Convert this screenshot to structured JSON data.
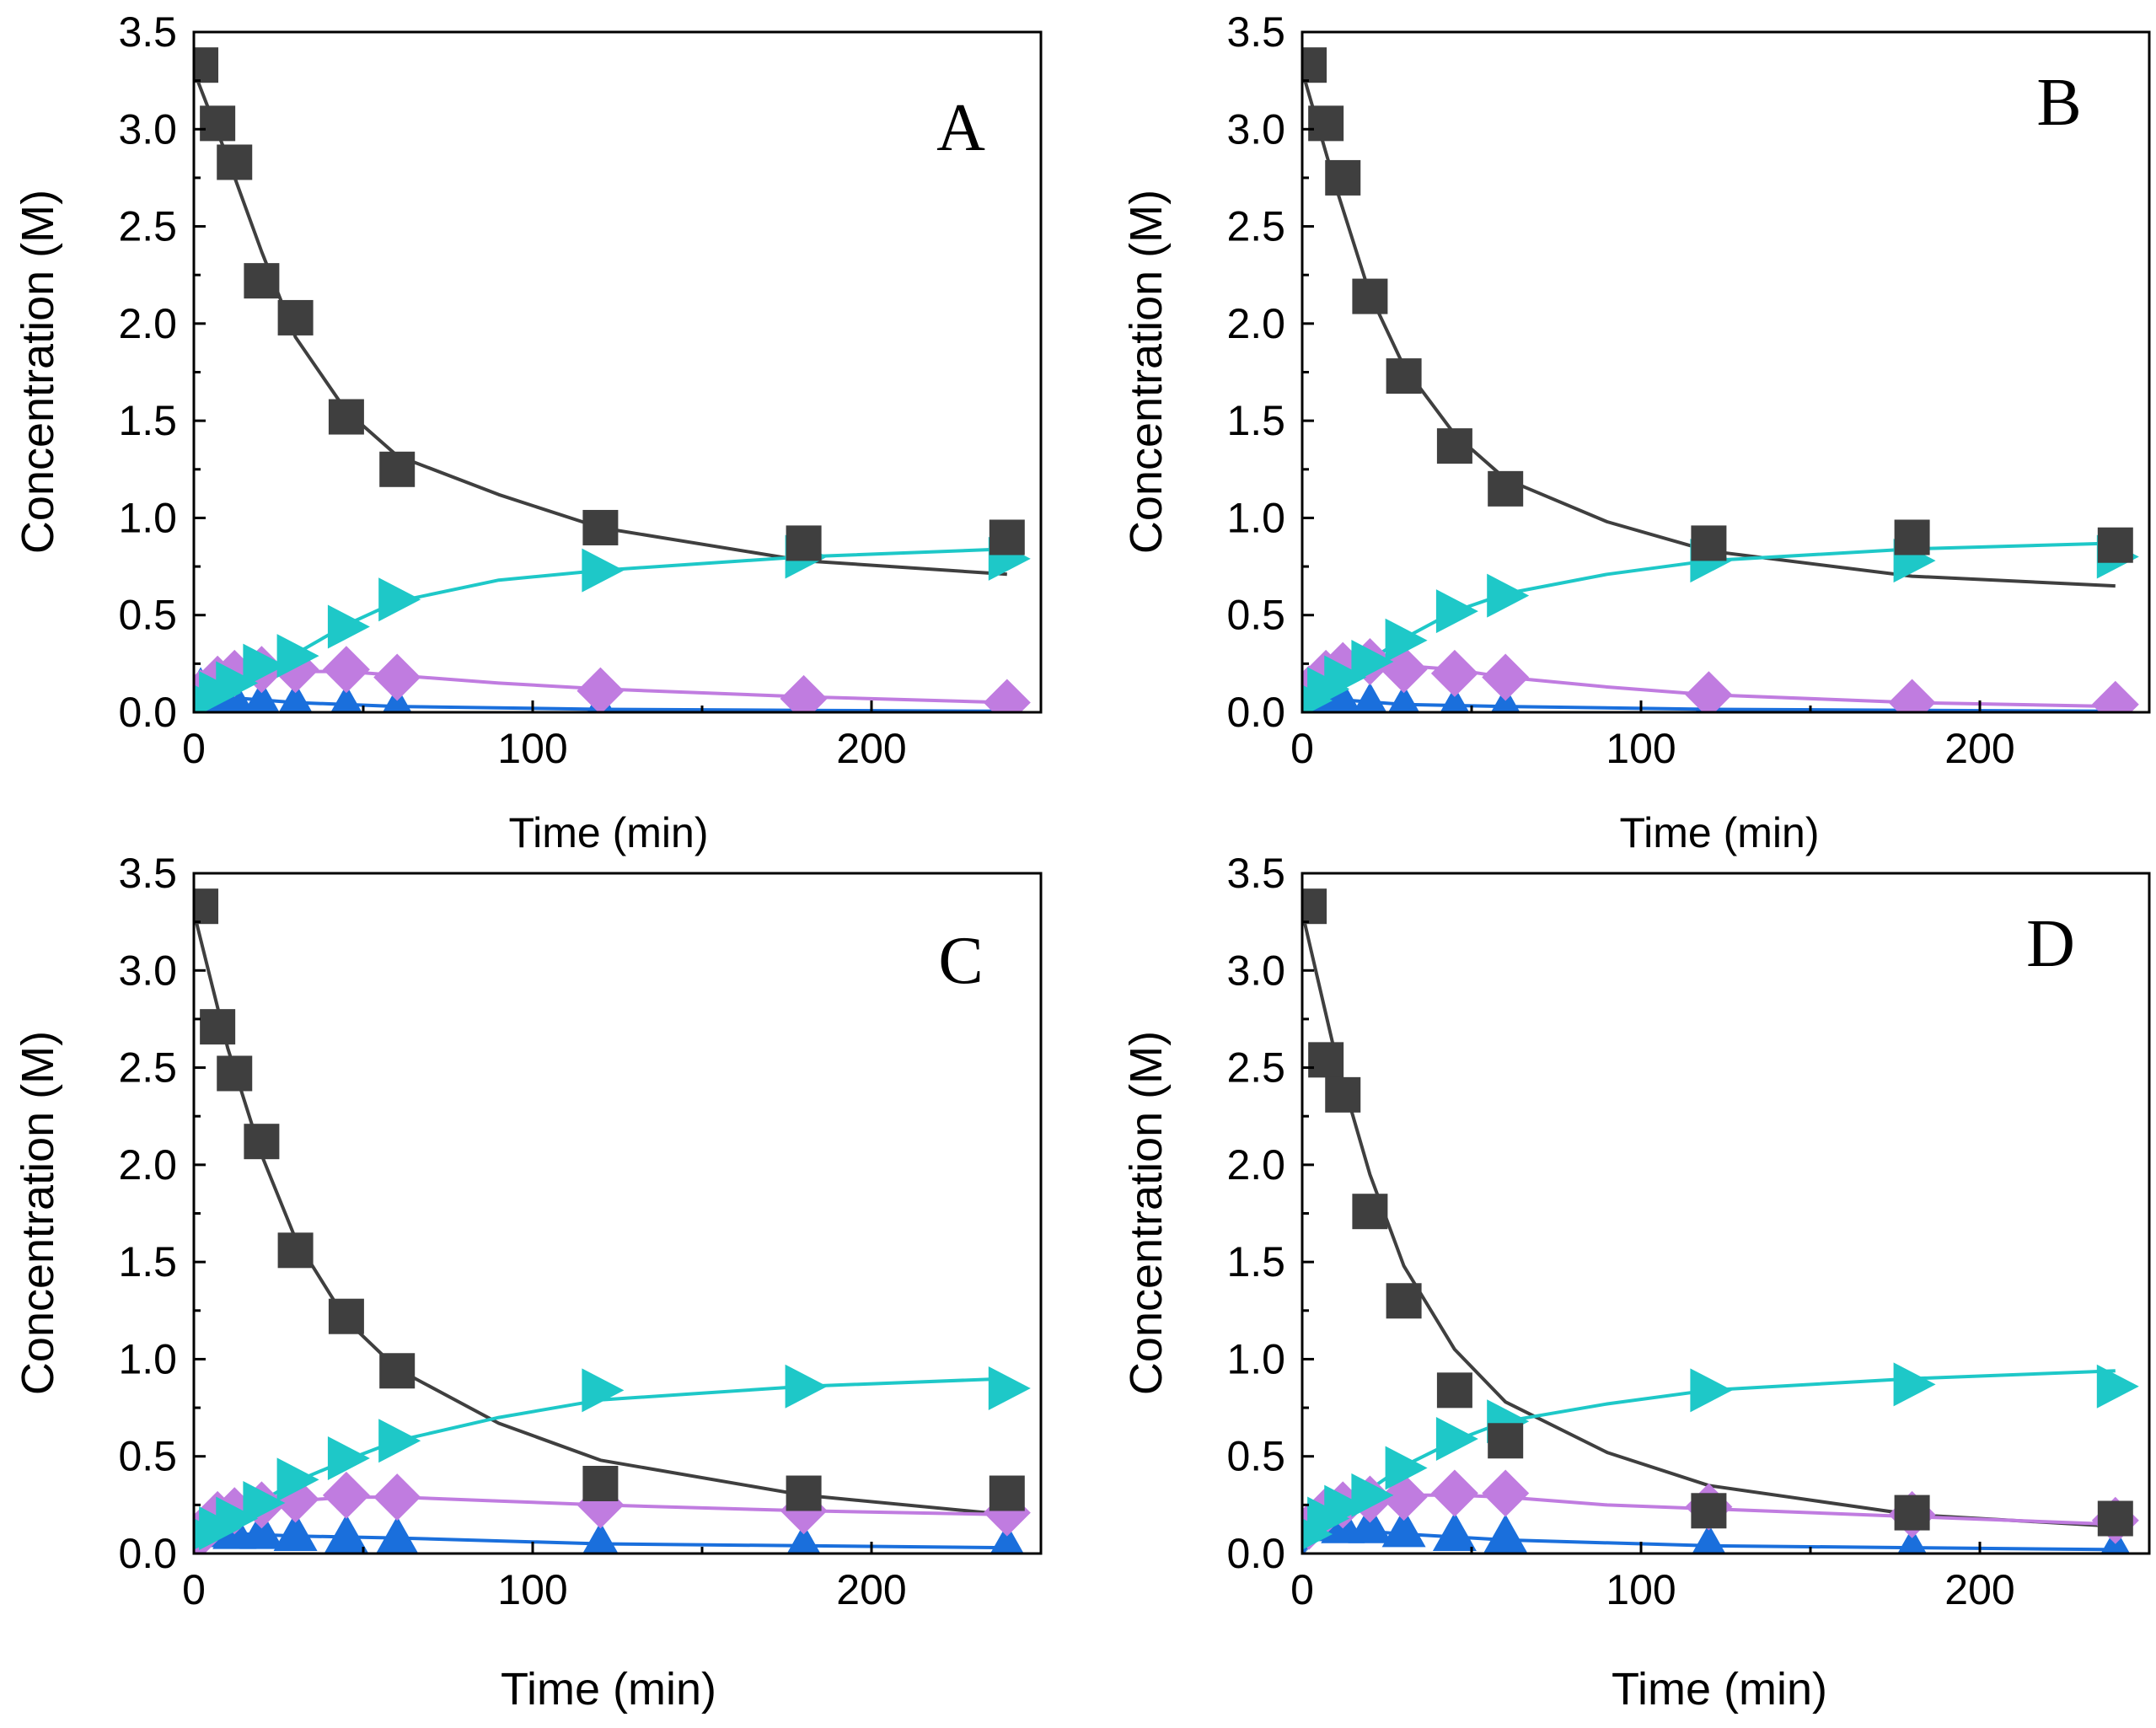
{
  "chart_data": [
    {
      "type": "scatter",
      "panel_label": "A",
      "xlabel": "Time (min)",
      "ylabel": "Concentration (M)",
      "xlim": [
        0,
        250
      ],
      "ylim": [
        0,
        3.5
      ],
      "xticks": [
        "0",
        "100",
        "200"
      ],
      "yticks": [
        "0.0",
        "0.5",
        "1.0",
        "1.5",
        "2.0",
        "2.5",
        "3.0",
        "3.5"
      ],
      "x": [
        2,
        7,
        12,
        20,
        30,
        45,
        60,
        120,
        180,
        240
      ],
      "series": [
        {
          "name": "series-1",
          "marker": "square",
          "color": "#3f3f3f",
          "values": [
            3.33,
            3.03,
            2.83,
            2.22,
            2.03,
            1.52,
            1.25,
            0.95,
            0.87,
            0.9
          ],
          "fit": [
            [
              0,
              3.3
            ],
            [
              10,
              2.85
            ],
            [
              20,
              2.37
            ],
            [
              30,
              1.93
            ],
            [
              45,
              1.55
            ],
            [
              60,
              1.32
            ],
            [
              90,
              1.12
            ],
            [
              120,
              0.95
            ],
            [
              180,
              0.78
            ],
            [
              240,
              0.71
            ]
          ]
        },
        {
          "name": "series-2",
          "marker": "triangle-right",
          "color": "#1ec8c8",
          "values": [
            0.06,
            0.1,
            0.15,
            0.24,
            0.29,
            0.44,
            0.58,
            0.73,
            0.8,
            0.79
          ],
          "fit": [
            [
              0,
              0.0
            ],
            [
              10,
              0.1
            ],
            [
              20,
              0.2
            ],
            [
              30,
              0.3
            ],
            [
              45,
              0.45
            ],
            [
              60,
              0.57
            ],
            [
              90,
              0.68
            ],
            [
              120,
              0.73
            ],
            [
              180,
              0.8
            ],
            [
              240,
              0.84
            ]
          ]
        },
        {
          "name": "series-3",
          "marker": "diamond",
          "color": "#c07ce0",
          "values": [
            0.1,
            0.17,
            0.2,
            0.22,
            0.22,
            0.22,
            0.18,
            0.11,
            0.07,
            0.05
          ],
          "fit": [
            [
              0,
              0.0
            ],
            [
              10,
              0.13
            ],
            [
              20,
              0.19
            ],
            [
              30,
              0.21
            ],
            [
              45,
              0.21
            ],
            [
              60,
              0.19
            ],
            [
              90,
              0.15
            ],
            [
              120,
              0.12
            ],
            [
              180,
              0.08
            ],
            [
              240,
              0.05
            ]
          ]
        },
        {
          "name": "series-4",
          "marker": "triangle-up",
          "color": "#1a6fdc",
          "values": [
            0.12,
            0.08,
            0.06,
            0.05,
            0.04,
            0.03,
            0.02,
            0.01,
            0.01,
            0.01
          ],
          "fit": [
            [
              0,
              0.0
            ],
            [
              5,
              0.08
            ],
            [
              15,
              0.07
            ],
            [
              30,
              0.05
            ],
            [
              60,
              0.03
            ],
            [
              120,
              0.015
            ],
            [
              180,
              0.01
            ],
            [
              240,
              0.005
            ]
          ]
        }
      ]
    },
    {
      "type": "scatter",
      "panel_label": "B",
      "xlabel": "Time (min)",
      "ylabel": "Concentration (M)",
      "xlim": [
        0,
        250
      ],
      "ylim": [
        0,
        3.5
      ],
      "xticks": [
        "0",
        "100",
        "200"
      ],
      "yticks": [
        "0.0",
        "0.5",
        "1.0",
        "1.5",
        "2.0",
        "2.5",
        "3.0",
        "3.5"
      ],
      "x": [
        2,
        7,
        12,
        20,
        30,
        45,
        60,
        120,
        180,
        240
      ],
      "series": [
        {
          "name": "series-1",
          "marker": "square",
          "color": "#3f3f3f",
          "values": [
            3.33,
            3.03,
            2.75,
            2.14,
            1.73,
            1.37,
            1.15,
            0.87,
            0.9,
            0.86
          ],
          "fit": [
            [
              0,
              3.3
            ],
            [
              10,
              2.7
            ],
            [
              20,
              2.15
            ],
            [
              30,
              1.78
            ],
            [
              45,
              1.43
            ],
            [
              60,
              1.2
            ],
            [
              90,
              0.98
            ],
            [
              120,
              0.83
            ],
            [
              180,
              0.7
            ],
            [
              240,
              0.65
            ]
          ]
        },
        {
          "name": "series-2",
          "marker": "triangle-right",
          "color": "#1ec8c8",
          "values": [
            0.06,
            0.12,
            0.18,
            0.26,
            0.37,
            0.52,
            0.6,
            0.78,
            0.78,
            0.8
          ],
          "fit": [
            [
              0,
              0.0
            ],
            [
              10,
              0.14
            ],
            [
              20,
              0.27
            ],
            [
              30,
              0.38
            ],
            [
              45,
              0.52
            ],
            [
              60,
              0.61
            ],
            [
              90,
              0.71
            ],
            [
              120,
              0.78
            ],
            [
              180,
              0.84
            ],
            [
              240,
              0.87
            ]
          ]
        },
        {
          "name": "series-3",
          "marker": "diamond",
          "color": "#c07ce0",
          "values": [
            0.12,
            0.2,
            0.24,
            0.26,
            0.22,
            0.2,
            0.18,
            0.09,
            0.05,
            0.04
          ],
          "fit": [
            [
              0,
              0.0
            ],
            [
              10,
              0.2
            ],
            [
              20,
              0.25
            ],
            [
              30,
              0.24
            ],
            [
              45,
              0.22
            ],
            [
              60,
              0.18
            ],
            [
              90,
              0.13
            ],
            [
              120,
              0.09
            ],
            [
              180,
              0.05
            ],
            [
              240,
              0.03
            ]
          ]
        },
        {
          "name": "series-4",
          "marker": "triangle-up",
          "color": "#1a6fdc",
          "values": [
            0.1,
            0.07,
            0.05,
            0.04,
            0.03,
            0.02,
            0.02,
            0.01,
            0.01,
            0.01
          ],
          "fit": [
            [
              0,
              0.0
            ],
            [
              5,
              0.07
            ],
            [
              15,
              0.06
            ],
            [
              30,
              0.04
            ],
            [
              60,
              0.03
            ],
            [
              120,
              0.015
            ],
            [
              180,
              0.01
            ],
            [
              240,
              0.005
            ]
          ]
        }
      ]
    },
    {
      "type": "scatter",
      "panel_label": "C",
      "xlabel": "Time (min)",
      "ylabel": "Concentration (M)",
      "xlim": [
        0,
        250
      ],
      "ylim": [
        0,
        3.5
      ],
      "xticks": [
        "0",
        "100",
        "200"
      ],
      "yticks": [
        "0.0",
        "0.5",
        "1.0",
        "1.5",
        "2.0",
        "2.5",
        "3.0",
        "3.5"
      ],
      "x": [
        2,
        7,
        12,
        20,
        30,
        45,
        60,
        120,
        180,
        240
      ],
      "series": [
        {
          "name": "series-1",
          "marker": "square",
          "color": "#3f3f3f",
          "values": [
            3.33,
            2.71,
            2.47,
            2.12,
            1.56,
            1.22,
            0.94,
            0.36,
            0.31,
            0.31
          ],
          "fit": [
            [
              0,
              3.3
            ],
            [
              10,
              2.6
            ],
            [
              20,
              2.05
            ],
            [
              30,
              1.62
            ],
            [
              45,
              1.2
            ],
            [
              60,
              0.95
            ],
            [
              90,
              0.67
            ],
            [
              120,
              0.48
            ],
            [
              180,
              0.3
            ],
            [
              240,
              0.2
            ]
          ]
        },
        {
          "name": "series-2",
          "marker": "triangle-right",
          "color": "#1ec8c8",
          "values": [
            0.1,
            0.13,
            0.18,
            0.26,
            0.38,
            0.49,
            0.58,
            0.84,
            0.86,
            0.85
          ],
          "fit": [
            [
              0,
              0.0
            ],
            [
              10,
              0.17
            ],
            [
              20,
              0.27
            ],
            [
              30,
              0.37
            ],
            [
              45,
              0.48
            ],
            [
              60,
              0.58
            ],
            [
              90,
              0.7
            ],
            [
              120,
              0.79
            ],
            [
              180,
              0.86
            ],
            [
              240,
              0.9
            ]
          ]
        },
        {
          "name": "series-3",
          "marker": "diamond",
          "color": "#c07ce0",
          "values": [
            0.1,
            0.2,
            0.22,
            0.25,
            0.28,
            0.3,
            0.29,
            0.25,
            0.22,
            0.21
          ],
          "fit": [
            [
              0,
              0.0
            ],
            [
              10,
              0.2
            ],
            [
              20,
              0.25
            ],
            [
              30,
              0.27
            ],
            [
              45,
              0.29
            ],
            [
              60,
              0.29
            ],
            [
              90,
              0.27
            ],
            [
              120,
              0.25
            ],
            [
              180,
              0.22
            ],
            [
              240,
              0.2
            ]
          ]
        },
        {
          "name": "series-4",
          "marker": "triangle-up",
          "color": "#1a6fdc",
          "values": [
            0.12,
            0.12,
            0.11,
            0.11,
            0.1,
            0.09,
            0.08,
            0.05,
            0.04,
            0.04
          ],
          "fit": [
            [
              0,
              0.0
            ],
            [
              5,
              0.1
            ],
            [
              15,
              0.1
            ],
            [
              30,
              0.09
            ],
            [
              60,
              0.08
            ],
            [
              120,
              0.05
            ],
            [
              180,
              0.04
            ],
            [
              240,
              0.03
            ]
          ]
        }
      ]
    },
    {
      "type": "scatter",
      "panel_label": "D",
      "xlabel": "Time (min)",
      "ylabel": "Concentration (M)",
      "xlim": [
        0,
        250
      ],
      "ylim": [
        0,
        3.5
      ],
      "xticks": [
        "0",
        "100",
        "200"
      ],
      "yticks": [
        "0.0",
        "0.5",
        "1.0",
        "1.5",
        "2.0",
        "2.5",
        "3.0",
        "3.5"
      ],
      "x": [
        2,
        7,
        12,
        20,
        30,
        45,
        60,
        120,
        180,
        240
      ],
      "series": [
        {
          "name": "series-1",
          "marker": "square",
          "color": "#3f3f3f",
          "values": [
            3.33,
            2.54,
            2.36,
            1.76,
            1.3,
            0.84,
            0.58,
            0.22,
            0.21,
            0.18
          ],
          "fit": [
            [
              0,
              3.3
            ],
            [
              10,
              2.55
            ],
            [
              20,
              1.95
            ],
            [
              30,
              1.48
            ],
            [
              45,
              1.05
            ],
            [
              60,
              0.78
            ],
            [
              90,
              0.52
            ],
            [
              120,
              0.35
            ],
            [
              180,
              0.2
            ],
            [
              240,
              0.14
            ]
          ]
        },
        {
          "name": "series-2",
          "marker": "triangle-right",
          "color": "#1ec8c8",
          "values": [
            0.1,
            0.18,
            0.24,
            0.3,
            0.44,
            0.59,
            0.68,
            0.84,
            0.87,
            0.86
          ],
          "fit": [
            [
              0,
              0.0
            ],
            [
              10,
              0.19
            ],
            [
              20,
              0.33
            ],
            [
              30,
              0.45
            ],
            [
              45,
              0.58
            ],
            [
              60,
              0.68
            ],
            [
              90,
              0.77
            ],
            [
              120,
              0.84
            ],
            [
              180,
              0.9
            ],
            [
              240,
              0.94
            ]
          ]
        },
        {
          "name": "series-3",
          "marker": "diamond",
          "color": "#c07ce0",
          "values": [
            0.14,
            0.22,
            0.25,
            0.28,
            0.29,
            0.31,
            0.31,
            0.24,
            0.2,
            0.17
          ],
          "fit": [
            [
              0,
              0.0
            ],
            [
              10,
              0.22
            ],
            [
              20,
              0.27
            ],
            [
              30,
              0.3
            ],
            [
              45,
              0.3
            ],
            [
              60,
              0.29
            ],
            [
              90,
              0.25
            ],
            [
              120,
              0.23
            ],
            [
              180,
              0.19
            ],
            [
              240,
              0.15
            ]
          ]
        },
        {
          "name": "series-4",
          "marker": "triangle-up",
          "color": "#1a6fdc",
          "values": [
            0.16,
            0.15,
            0.14,
            0.14,
            0.12,
            0.1,
            0.09,
            0.04,
            0.02,
            0.02
          ],
          "fit": [
            [
              0,
              0.0
            ],
            [
              5,
              0.13
            ],
            [
              15,
              0.12
            ],
            [
              30,
              0.1
            ],
            [
              60,
              0.07
            ],
            [
              120,
              0.04
            ],
            [
              180,
              0.03
            ],
            [
              240,
              0.02
            ]
          ]
        }
      ]
    }
  ]
}
